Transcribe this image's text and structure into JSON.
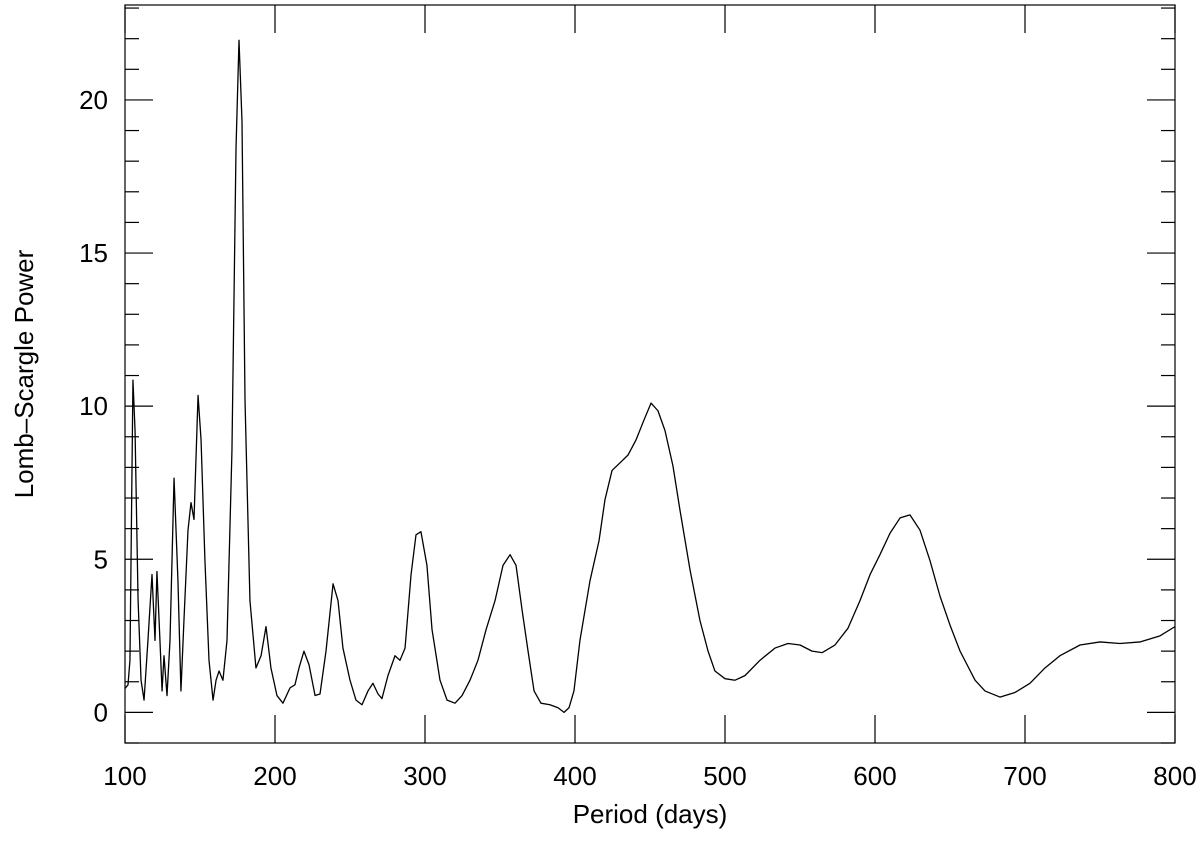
{
  "chart_data": {
    "type": "line",
    "x_label": "Period (days)",
    "y_label": "Lomb–Scargle Power",
    "color": "#000000",
    "xlim": [
      100,
      800
    ],
    "ylim": [
      -1,
      23.1
    ],
    "xticks": [
      100,
      200,
      300,
      400,
      500,
      600,
      700,
      800
    ],
    "yticks": [
      0,
      5,
      10,
      15,
      20
    ],
    "yminorticks": [
      -1,
      1,
      2,
      3,
      4,
      6,
      7,
      8,
      9,
      11,
      12,
      13,
      14,
      16,
      17,
      18,
      19,
      21,
      22,
      23
    ],
    "x": [
      100,
      102,
      103.3,
      105.3,
      106.7,
      108.7,
      110.7,
      112.7,
      115.3,
      118,
      120,
      121.3,
      123.3,
      124.7,
      126,
      128,
      130,
      132.7,
      135.3,
      137.3,
      139.3,
      142,
      144,
      146,
      148.7,
      150.7,
      153.3,
      156,
      158.7,
      160.7,
      162.7,
      165.3,
      168,
      171.3,
      174,
      176,
      178,
      180,
      183.3,
      187.3,
      190.7,
      194,
      197.3,
      201.3,
      205.3,
      210,
      213.3,
      216,
      219.3,
      222.7,
      226.7,
      230,
      234,
      238.7,
      242,
      245.3,
      250,
      254,
      258,
      262,
      265.3,
      268.7,
      271.3,
      275.3,
      280,
      283.3,
      286.7,
      290.7,
      294,
      297.3,
      301.3,
      304.7,
      310,
      314.7,
      320,
      324.7,
      330,
      335.3,
      340.7,
      346.7,
      352,
      356.7,
      360.7,
      364.7,
      368.7,
      372.7,
      377.3,
      383.3,
      388.7,
      392.7,
      396,
      399.3,
      403.3,
      410,
      416,
      420,
      424.7,
      430,
      435.3,
      440.7,
      446,
      450.7,
      455.3,
      460,
      465.3,
      470,
      476.7,
      483.3,
      488.7,
      493.3,
      500,
      506.7,
      513.3,
      523.3,
      533.3,
      542,
      550,
      558,
      564.7,
      573.3,
      582,
      590,
      596.7,
      603.3,
      610,
      616.7,
      623.3,
      630,
      636.7,
      643.3,
      650,
      656.7,
      666.7,
      673.3,
      683.3,
      693.3,
      703.3,
      713.3,
      723.3,
      736.7,
      750,
      763.3,
      776.7,
      790,
      800
    ],
    "values": [
      0.78,
      0.9,
      1.7,
      10.85,
      9.2,
      3.7,
      1.05,
      0.4,
      2.35,
      4.5,
      2.35,
      4.6,
      2.35,
      0.7,
      1.85,
      0.55,
      2.35,
      7.65,
      4.3,
      0.7,
      3.0,
      5.95,
      6.85,
      6.3,
      10.35,
      8.9,
      4.95,
      1.7,
      0.4,
      1.05,
      1.35,
      1.05,
      2.35,
      8.55,
      18.4,
      21.95,
      19.3,
      10.2,
      3.65,
      1.45,
      1.85,
      2.8,
      1.45,
      0.55,
      0.3,
      0.8,
      0.9,
      1.45,
      2.0,
      1.55,
      0.55,
      0.6,
      2.0,
      4.2,
      3.65,
      2.1,
      1.05,
      0.4,
      0.25,
      0.7,
      0.95,
      0.6,
      0.45,
      1.2,
      1.85,
      1.7,
      2.1,
      4.5,
      5.8,
      5.9,
      4.8,
      2.7,
      1.05,
      0.4,
      0.3,
      0.55,
      1.05,
      1.7,
      2.7,
      3.65,
      4.8,
      5.15,
      4.8,
      3.35,
      2.0,
      0.7,
      0.3,
      0.25,
      0.15,
      0.0,
      0.15,
      0.7,
      2.35,
      4.3,
      5.6,
      6.95,
      7.9,
      8.15,
      8.4,
      8.9,
      9.55,
      10.1,
      9.85,
      9.2,
      8.05,
      6.6,
      4.65,
      3.0,
      2.0,
      1.35,
      1.1,
      1.05,
      1.2,
      1.7,
      2.1,
      2.25,
      2.2,
      2.0,
      1.95,
      2.2,
      2.75,
      3.65,
      4.5,
      5.15,
      5.85,
      6.35,
      6.45,
      5.95,
      4.95,
      3.8,
      2.85,
      2.0,
      1.05,
      0.7,
      0.5,
      0.65,
      0.95,
      1.45,
      1.85,
      2.2,
      2.3,
      2.25,
      2.3,
      2.5,
      2.8
    ]
  }
}
